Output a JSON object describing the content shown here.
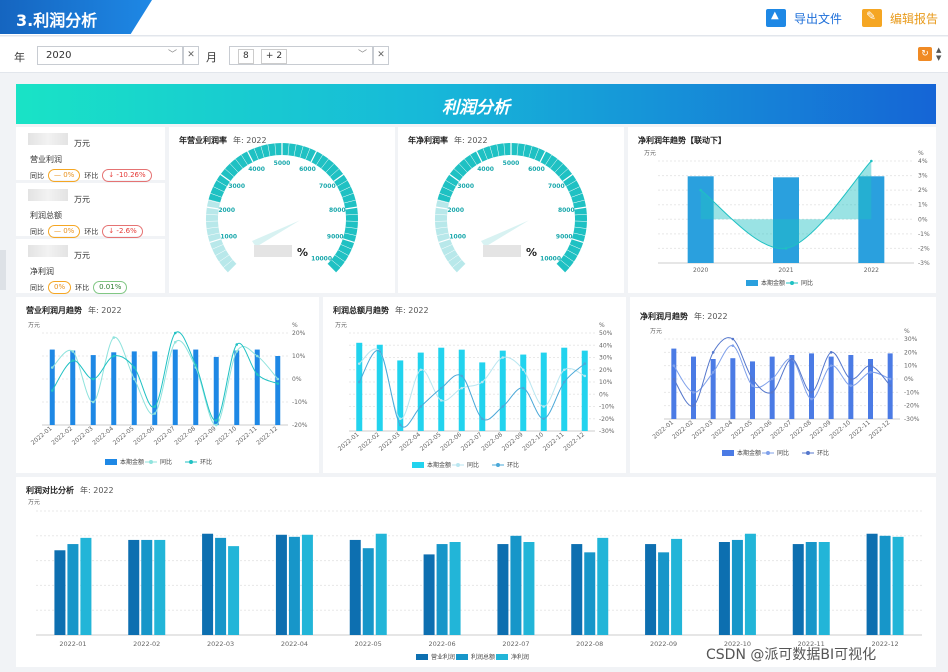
{
  "header": {
    "title": "3.利润分析",
    "export_label": "导出文件",
    "edit_label": "编辑报告"
  },
  "filters": {
    "year_label": "年",
    "year_value": "2020",
    "month_label": "月",
    "month_chips": [
      "8",
      "+ 2"
    ]
  },
  "banner": {
    "title": "利润分析"
  },
  "kpis": [
    {
      "unit": "万元",
      "name": "营业利润",
      "yoy_label": "同比",
      "yoy": "— 0%",
      "mom_label": "环比",
      "mom": "↓ -10.26%",
      "mom_trend": "down"
    },
    {
      "unit": "万元",
      "name": "利润总额",
      "yoy_label": "同比",
      "yoy": "— 0%",
      "mom_label": "环比",
      "mom": "↓ -2.6%",
      "mom_trend": "down"
    },
    {
      "unit": "万元",
      "name": "净利润",
      "yoy_label": "同比",
      "yoy": "0%",
      "mom_label": "环比",
      "mom": "0.01%",
      "mom_trend": "up"
    }
  ],
  "gauge_common": {
    "ticks": [
      "",
      "1000",
      "2000",
      "3000",
      "4000",
      "5000",
      "6000",
      "7000",
      "8000",
      "9000",
      "10000"
    ],
    "unit": "%"
  },
  "chart_data": [
    {
      "type": "gauge",
      "title": "年营业利润率",
      "year_label": "年: 2022",
      "min": 0,
      "max": 10000
    },
    {
      "type": "gauge",
      "title": "年净利润率",
      "year_label": "年: 2022",
      "min": 0,
      "max": 10000
    },
    {
      "type": "bar",
      "title": "净利润年趋势【联动下】",
      "y_unit": "万元",
      "y2_unit": "%",
      "categories": [
        "2020",
        "2021",
        "2022"
      ],
      "series": [
        {
          "name": "本期金额",
          "values": [
            85,
            84,
            85
          ]
        },
        {
          "name": "同比",
          "values": [
            2,
            -2,
            4
          ]
        }
      ],
      "y2_ticks": [
        "4%",
        "3%",
        "2%",
        "1%",
        "0%",
        "-1%",
        "-2%",
        "-3%"
      ],
      "y2lim": [
        -3,
        4
      ],
      "legend": "bottom"
    },
    {
      "type": "bar",
      "title": "营业利润月趋势",
      "year_label": "年: 2022",
      "y_unit": "万元",
      "y2_unit": "%",
      "categories": [
        "2022-01",
        "2022-02",
        "2022-03",
        "2022-04",
        "2022-05",
        "2022-06",
        "2022-07",
        "2022-08",
        "2022-09",
        "2022-10",
        "2022-11",
        "2022-12"
      ],
      "series": [
        {
          "name": "本期金额",
          "values": [
            82,
            81,
            76,
            79,
            80,
            80,
            82,
            82,
            74,
            81,
            82,
            75
          ]
        },
        {
          "name": "同比",
          "values": [
            5,
            12,
            -10,
            18,
            0,
            -15,
            16,
            5,
            -20,
            12,
            10,
            0
          ]
        },
        {
          "name": "环比",
          "values": [
            -5,
            8,
            0,
            10,
            5,
            -12,
            20,
            6,
            -18,
            15,
            2,
            -2
          ]
        }
      ],
      "y2_ticks": [
        "20%",
        "10%",
        "0%",
        "-10%",
        "-20%"
      ],
      "y2lim": [
        -20,
        20
      ],
      "legend": "bottom"
    },
    {
      "type": "bar",
      "title": "利润总额月趋势",
      "year_label": "年: 2022",
      "y_unit": "万元",
      "y2_unit": "%",
      "categories": [
        "2022-01",
        "2022-02",
        "2022-03",
        "2022-04",
        "2022-05",
        "2022-06",
        "2022-07",
        "2022-08",
        "2022-09",
        "2022-10",
        "2022-11",
        "2022-12"
      ],
      "series": [
        {
          "name": "本期金额",
          "values": [
            90,
            88,
            72,
            80,
            85,
            83,
            70,
            82,
            78,
            80,
            85,
            82
          ]
        },
        {
          "name": "同比",
          "values": [
            25,
            35,
            -20,
            20,
            -5,
            5,
            10,
            30,
            20,
            -10,
            20,
            15
          ]
        },
        {
          "name": "环比",
          "values": [
            10,
            35,
            -25,
            -10,
            5,
            15,
            -20,
            -10,
            5,
            -20,
            10,
            25
          ]
        }
      ],
      "y2_ticks": [
        "50%",
        "40%",
        "30%",
        "20%",
        "10%",
        "0%",
        "-10%",
        "-20%",
        "-30%"
      ],
      "y2lim": [
        -30,
        50
      ],
      "legend": "bottom"
    },
    {
      "type": "bar",
      "title": "净利润月趋势",
      "year_label": "年: 2022",
      "y_unit": "万元",
      "y2_unit": "%",
      "categories": [
        "2022-01",
        "2022-02",
        "2022-03",
        "2022-04",
        "2022-05",
        "2022-06",
        "2022-07",
        "2022-08",
        "2022-09",
        "2022-10",
        "2022-11",
        "2022-12"
      ],
      "series": [
        {
          "name": "本期金额",
          "values": [
            88,
            78,
            75,
            76,
            72,
            78,
            80,
            82,
            78,
            80,
            75,
            82
          ]
        },
        {
          "name": "同比",
          "values": [
            10,
            -10,
            5,
            25,
            -5,
            0,
            15,
            -15,
            10,
            -5,
            5,
            0
          ]
        },
        {
          "name": "环比",
          "values": [
            0,
            -20,
            20,
            30,
            0,
            -10,
            15,
            -10,
            20,
            0,
            10,
            -5
          ]
        }
      ],
      "y2_ticks": [
        "30%",
        "20%",
        "10%",
        "0%",
        "-10%",
        "-20%",
        "-30%"
      ],
      "y2lim": [
        -30,
        30
      ],
      "legend": "bottom"
    },
    {
      "type": "bar",
      "title": "利润对比分析",
      "year_label": "年: 2022",
      "y_unit": "万元",
      "categories": [
        "2022-01",
        "2022-02",
        "2022-03",
        "2022-04",
        "2022-05",
        "2022-06",
        "2022-07",
        "2022-08",
        "2022-09",
        "2022-10",
        "2022-11",
        "2022-12"
      ],
      "series": [
        {
          "name": "营业利润",
          "values": [
            82,
            92,
            98,
            97,
            92,
            78,
            88,
            88,
            88,
            90,
            88,
            98
          ]
        },
        {
          "name": "利润总额",
          "values": [
            88,
            92,
            94,
            95,
            84,
            88,
            96,
            80,
            80,
            92,
            90,
            96
          ]
        },
        {
          "name": "净利润",
          "values": [
            94,
            92,
            86,
            97,
            98,
            90,
            90,
            94,
            93,
            98,
            90,
            95
          ]
        }
      ],
      "legend": "bottom"
    }
  ],
  "colors": {
    "bar_blue": "#1e88e5",
    "bar_cyan": "#22d3ee",
    "bar_indigo": "#4b7be5",
    "teal": "#1fc1c3",
    "cmp1": "#0d6fb0",
    "cmp2": "#1796c9",
    "cmp3": "#22b5d8"
  },
  "watermark": "CSDN @派可数据BI可视化"
}
